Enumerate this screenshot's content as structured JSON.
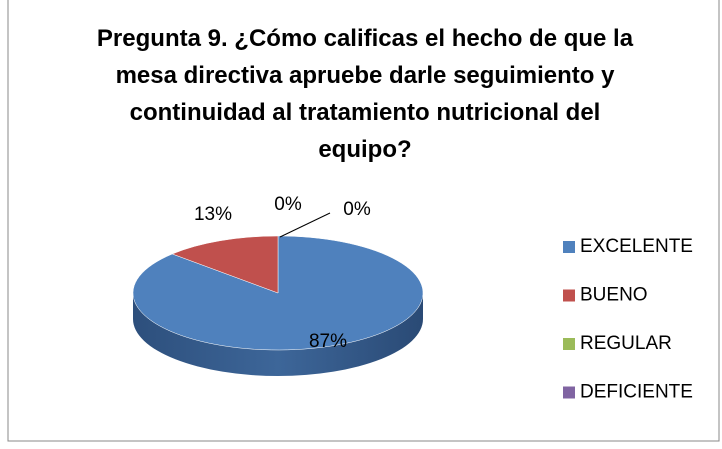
{
  "chart_data": {
    "type": "pie",
    "title": "Pregunta 9. ¿Cómo calificas el hecho de que la mesa directiva apruebe darle seguimiento y continuidad al tratamiento nutricional del equipo?",
    "categories": [
      "EXCELENTE",
      "BUENO",
      "REGULAR",
      "DEFICIENTE"
    ],
    "values": [
      87,
      13,
      0,
      0
    ],
    "value_labels": [
      "87%",
      "13%",
      "0%",
      "0%"
    ],
    "colors": [
      "#4f81bd",
      "#c0504d",
      "#9bbb59",
      "#8064a2"
    ],
    "legend": "right"
  }
}
